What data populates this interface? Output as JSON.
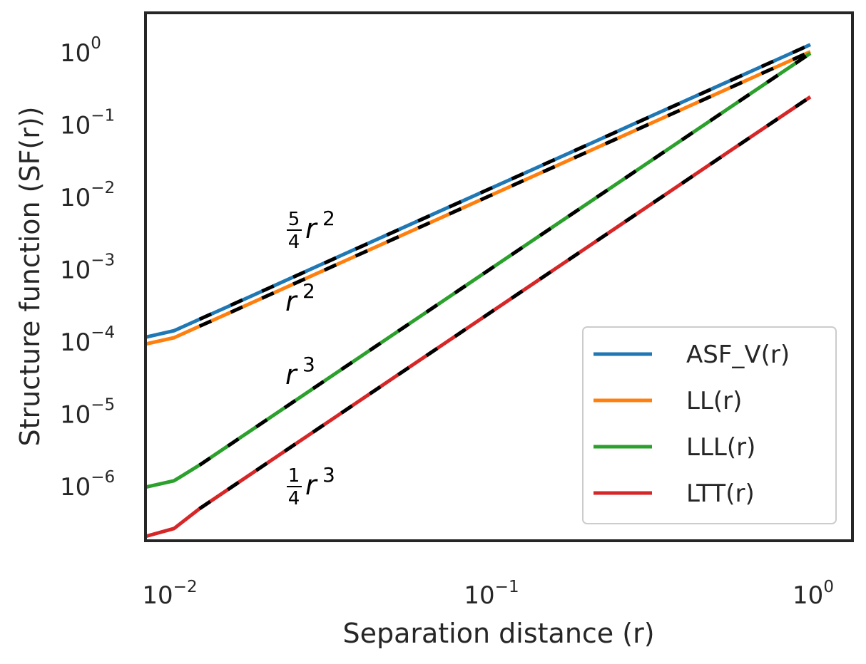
{
  "chart_data": {
    "type": "line",
    "xlabel": "Separation distance (r)",
    "ylabel": "Structure function (SF(r))",
    "xscale": "log",
    "yscale": "log",
    "xlim": [
      0.0082,
      1.2
    ],
    "ylim": [
      1e-07,
      2.1
    ],
    "grid": false,
    "legend_placement": "lower-right",
    "x_ticks": [
      {
        "base": "10",
        "exp": "−2"
      },
      {
        "base": "10",
        "exp": "−1"
      },
      {
        "base": "10",
        "exp": "0"
      }
    ],
    "y_ticks": [
      {
        "base": "10",
        "exp": "0"
      },
      {
        "base": "10",
        "exp": "−1"
      },
      {
        "base": "10",
        "exp": "−2"
      },
      {
        "base": "10",
        "exp": "−3"
      },
      {
        "base": "10",
        "exp": "−4"
      },
      {
        "base": "10",
        "exp": "−5"
      },
      {
        "base": "10",
        "exp": "−6"
      }
    ],
    "x": [
      0.0082,
      0.01,
      0.012,
      0.015,
      0.02,
      0.03,
      0.05,
      0.08,
      0.12,
      0.2,
      0.3,
      0.5,
      0.7,
      0.95
    ],
    "series": [
      {
        "name": "ASF_V(r)",
        "color": "#1f77b4",
        "values": [
          0.000102,
          0.000125,
          0.00018,
          0.00028,
          0.0005,
          0.00113,
          0.00313,
          0.008,
          0.018,
          0.05,
          0.113,
          0.313,
          0.613,
          1.13
        ]
      },
      {
        "name": "LL(r)",
        "color": "#ff7f0e",
        "values": [
          8.2e-05,
          0.0001,
          0.000144,
          0.000225,
          0.0004,
          0.0009,
          0.0025,
          0.0064,
          0.0144,
          0.04,
          0.09,
          0.25,
          0.49,
          0.9
        ]
      },
      {
        "name": "LLL(r)",
        "color": "#2ca02c",
        "values": [
          8.6e-07,
          1.05e-06,
          1.73e-06,
          3.38e-06,
          8e-06,
          2.7e-05,
          0.000125,
          0.000512,
          0.00173,
          0.008,
          0.027,
          0.125,
          0.343,
          0.857
        ]
      },
      {
        "name": "LTT(r)",
        "color": "#d62728",
        "values": [
          1.8e-07,
          2.3e-07,
          4.32e-07,
          8.44e-07,
          2e-06,
          6.75e-06,
          3.13e-05,
          0.000128,
          0.000432,
          0.002,
          0.00675,
          0.0313,
          0.0858,
          0.214
        ]
      }
    ],
    "reference_lines": [
      {
        "label": "5/4 r²",
        "coef": 1.25,
        "power": 2,
        "color": "#000000",
        "style": "dashed"
      },
      {
        "label": "r²",
        "coef": 1.0,
        "power": 2,
        "color": "#000000",
        "style": "dashed"
      },
      {
        "label": "r³",
        "coef": 1.0,
        "power": 3,
        "color": "#000000",
        "style": "dashed"
      },
      {
        "label": "1/4 r³",
        "coef": 0.25,
        "power": 3,
        "color": "#000000",
        "style": "dashed"
      }
    ],
    "annotations": [
      {
        "text_num": "5",
        "text_den": "4",
        "text_var": "r",
        "text_exp": "2",
        "fraction": true
      },
      {
        "text_var": "r",
        "text_exp": "2",
        "fraction": false
      },
      {
        "text_var": "r",
        "text_exp": "3",
        "fraction": false
      },
      {
        "text_num": "1",
        "text_den": "4",
        "text_var": "r",
        "text_exp": "3",
        "fraction": true
      }
    ]
  }
}
